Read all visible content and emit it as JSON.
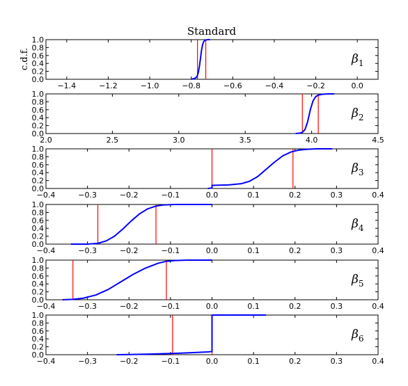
{
  "figure": {
    "title": "Standard",
    "ylabel": "c.d.f."
  },
  "chart_data": [
    {
      "type": "line",
      "label": "β1",
      "label_base": "β",
      "label_sub": "1",
      "xlim": [
        -1.5,
        0.1
      ],
      "ylim": [
        0.0,
        1.0
      ],
      "xticks": [
        -1.4,
        -1.2,
        -1.0,
        -0.8,
        -0.6,
        -0.4,
        -0.2,
        0.0
      ],
      "xtick_labels": [
        "−1.4",
        "−1.2",
        "−1.0",
        "−0.8",
        "−0.6",
        "−0.4",
        "−0.2",
        "0.0"
      ],
      "yticks": [
        0.0,
        0.2,
        0.4,
        0.6,
        0.8,
        1.0
      ],
      "ytick_labels": [
        "0.0",
        "0.2",
        "0.4",
        "0.6",
        "0.8",
        "1.0"
      ],
      "curve_color": "#0000ff",
      "marker_color": "#ff0000",
      "markers": [
        -0.77,
        -0.73
      ],
      "series": [
        {
          "x": [
            -0.8,
            -0.785,
            -0.775,
            -0.77,
            -0.765,
            -0.76,
            -0.755,
            -0.75,
            -0.745,
            -0.74,
            -0.735,
            -0.73,
            -0.72,
            -0.71
          ],
          "y": [
            0.0,
            0.02,
            0.05,
            0.1,
            0.2,
            0.35,
            0.55,
            0.75,
            0.88,
            0.95,
            0.98,
            0.99,
            1.0,
            1.0
          ]
        }
      ]
    },
    {
      "type": "line",
      "label": "β2",
      "label_base": "β",
      "label_sub": "2",
      "xlim": [
        2.0,
        4.5
      ],
      "ylim": [
        0.0,
        1.0
      ],
      "xticks": [
        2.0,
        2.5,
        3.0,
        3.5,
        4.0,
        4.5
      ],
      "xtick_labels": [
        "2.0",
        "2.5",
        "3.0",
        "3.5",
        "4.0",
        "4.5"
      ],
      "yticks": [
        0.0,
        0.2,
        0.4,
        0.6,
        0.8,
        1.0
      ],
      "ytick_labels": [
        "0.0",
        "0.2",
        "0.4",
        "0.6",
        "0.8",
        "1.0"
      ],
      "curve_color": "#0000ff",
      "marker_color": "#ff0000",
      "markers": [
        3.93,
        4.05
      ],
      "series": [
        {
          "x": [
            3.88,
            3.91,
            3.93,
            3.95,
            3.97,
            3.99,
            4.01,
            4.03,
            4.05,
            4.08,
            4.12,
            4.17
          ],
          "y": [
            0.0,
            0.01,
            0.03,
            0.1,
            0.3,
            0.6,
            0.82,
            0.93,
            0.97,
            0.99,
            1.0,
            1.0
          ]
        }
      ]
    },
    {
      "type": "line",
      "label": "β3",
      "label_base": "β",
      "label_sub": "3",
      "xlim": [
        -0.4,
        0.4
      ],
      "ylim": [
        0.0,
        1.0
      ],
      "xticks": [
        -0.4,
        -0.3,
        -0.2,
        -0.1,
        0.0,
        0.1,
        0.2,
        0.3,
        0.4
      ],
      "xtick_labels": [
        "−0.4",
        "−0.3",
        "−0.2",
        "−0.1",
        "0.0",
        "0.1",
        "0.2",
        "0.3",
        "0.4"
      ],
      "yticks": [
        0.0,
        0.2,
        0.4,
        0.6,
        0.8,
        1.0
      ],
      "ytick_labels": [
        "0.0",
        "0.2",
        "0.4",
        "0.6",
        "0.8",
        "1.0"
      ],
      "curve_color": "#0000ff",
      "marker_color": "#ff0000",
      "markers": [
        0.0,
        0.195
      ],
      "series": [
        {
          "x": [
            -0.01,
            -0.002,
            0.0,
            0.0,
            0.04,
            0.07,
            0.09,
            0.11,
            0.13,
            0.15,
            0.17,
            0.19,
            0.21,
            0.23,
            0.25,
            0.27,
            0.29
          ],
          "y": [
            0.0,
            0.01,
            0.02,
            0.08,
            0.09,
            0.12,
            0.18,
            0.3,
            0.48,
            0.66,
            0.82,
            0.92,
            0.97,
            0.99,
            1.0,
            1.0,
            1.0
          ]
        }
      ]
    },
    {
      "type": "line",
      "label": "β4",
      "label_base": "β",
      "label_sub": "4",
      "xlim": [
        -0.4,
        0.4
      ],
      "ylim": [
        0.0,
        1.0
      ],
      "xticks": [
        -0.4,
        -0.3,
        -0.2,
        -0.1,
        0.0,
        0.1,
        0.2,
        0.3,
        0.4
      ],
      "xtick_labels": [
        "−0.4",
        "−0.3",
        "−0.2",
        "−0.1",
        "0.0",
        "0.1",
        "0.2",
        "0.3",
        "0.4"
      ],
      "yticks": [
        0.0,
        0.2,
        0.4,
        0.6,
        0.8,
        1.0
      ],
      "ytick_labels": [
        "0.0",
        "0.2",
        "0.4",
        "0.6",
        "0.8",
        "1.0"
      ],
      "curve_color": "#0000ff",
      "marker_color": "#ff0000",
      "markers": [
        -0.275,
        -0.135
      ],
      "series": [
        {
          "x": [
            -0.34,
            -0.3,
            -0.275,
            -0.255,
            -0.235,
            -0.215,
            -0.195,
            -0.175,
            -0.155,
            -0.135,
            -0.115,
            -0.09,
            -0.06,
            -0.03,
            0.0
          ],
          "y": [
            0.0,
            0.0,
            0.02,
            0.08,
            0.2,
            0.38,
            0.58,
            0.76,
            0.89,
            0.96,
            0.99,
            1.0,
            1.0,
            1.0,
            1.0
          ]
        }
      ]
    },
    {
      "type": "line",
      "label": "β5",
      "label_base": "β",
      "label_sub": "5",
      "xlim": [
        -0.4,
        0.4
      ],
      "ylim": [
        0.0,
        1.0
      ],
      "xticks": [
        -0.4,
        -0.3,
        -0.2,
        -0.1,
        0.0,
        0.1,
        0.2,
        0.3,
        0.4
      ],
      "xtick_labels": [
        "−0.4",
        "−0.3",
        "−0.2",
        "−0.1",
        "0.0",
        "0.1",
        "0.2",
        "0.3",
        "0.4"
      ],
      "yticks": [
        0.0,
        0.2,
        0.4,
        0.6,
        0.8,
        1.0
      ],
      "ytick_labels": [
        "0.0",
        "0.2",
        "0.4",
        "0.6",
        "0.8",
        "1.0"
      ],
      "curve_color": "#0000ff",
      "marker_color": "#ff0000",
      "markers": [
        -0.335,
        -0.11
      ],
      "series": [
        {
          "x": [
            -0.36,
            -0.335,
            -0.31,
            -0.28,
            -0.25,
            -0.22,
            -0.19,
            -0.16,
            -0.13,
            -0.11,
            -0.09,
            -0.06,
            -0.03,
            0.0
          ],
          "y": [
            0.0,
            0.01,
            0.04,
            0.12,
            0.26,
            0.45,
            0.64,
            0.8,
            0.92,
            0.97,
            0.99,
            1.0,
            1.0,
            1.0
          ]
        }
      ]
    },
    {
      "type": "line",
      "label": "β6",
      "label_base": "β",
      "label_sub": "6",
      "xlim": [
        -0.4,
        0.4
      ],
      "ylim": [
        0.0,
        1.0
      ],
      "xticks": [
        -0.4,
        -0.3,
        -0.2,
        -0.1,
        0.0,
        0.1,
        0.2,
        0.3,
        0.4
      ],
      "xtick_labels": [
        "−0.4",
        "−0.3",
        "−0.2",
        "−0.1",
        "0.0",
        "0.1",
        "0.2",
        "0.3",
        "0.4"
      ],
      "yticks": [
        0.0,
        0.2,
        0.4,
        0.6,
        0.8,
        1.0
      ],
      "ytick_labels": [
        "0.0",
        "0.2",
        "0.4",
        "0.6",
        "0.8",
        "1.0"
      ],
      "curve_color": "#0000ff",
      "marker_color": "#ff0000",
      "markers": [
        -0.095,
        0.0
      ],
      "series": [
        {
          "x": [
            -0.23,
            -0.2,
            -0.15,
            -0.1,
            -0.05,
            -0.01,
            0.0,
            0.0,
            0.05,
            0.1,
            0.13
          ],
          "y": [
            0.0,
            0.005,
            0.015,
            0.03,
            0.05,
            0.07,
            0.08,
            1.0,
            1.0,
            1.0,
            1.0
          ]
        }
      ]
    }
  ]
}
